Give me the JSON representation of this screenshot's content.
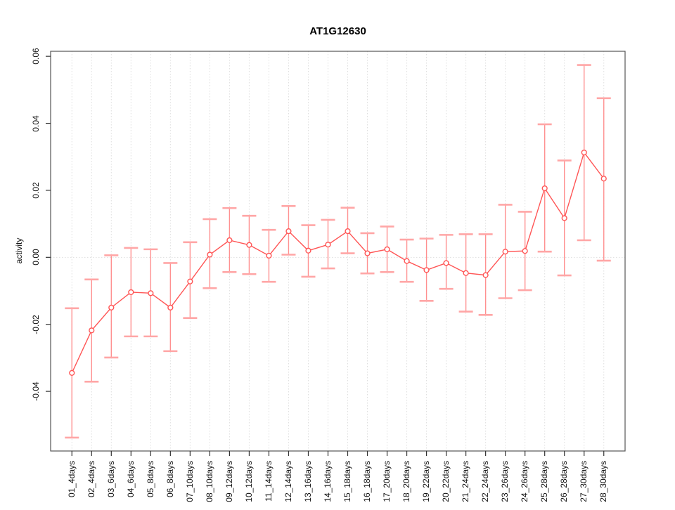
{
  "chart_data": {
    "type": "line",
    "title": "AT1G12630",
    "xlabel": "",
    "ylabel": "activity",
    "categories": [
      "01_4days",
      "02_4days",
      "03_6days",
      "04_6days",
      "05_8days",
      "06_8days",
      "07_10days",
      "08_10days",
      "09_12days",
      "10_12days",
      "11_14days",
      "12_14days",
      "13_16days",
      "14_16days",
      "15_18days",
      "16_18days",
      "17_20days",
      "18_20days",
      "19_22days",
      "20_22days",
      "21_24days",
      "22_24days",
      "23_26days",
      "24_26days",
      "25_28days",
      "26_28days",
      "27_30days",
      "28_30days"
    ],
    "series": [
      {
        "name": "activity",
        "values": [
          -0.0345,
          -0.0218,
          -0.015,
          -0.0104,
          -0.0107,
          -0.015,
          -0.0072,
          0.0008,
          0.0051,
          0.0037,
          0.0005,
          0.0078,
          0.002,
          0.0038,
          0.0078,
          0.0012,
          0.0024,
          -0.0011,
          -0.0038,
          -0.0017,
          -0.0047,
          -0.0053,
          0.0017,
          0.0019,
          0.0206,
          0.0117,
          0.0313,
          0.0235
        ],
        "upper": [
          -0.0152,
          -0.0066,
          0.0006,
          0.0028,
          0.0024,
          -0.0017,
          0.0045,
          0.0114,
          0.0147,
          0.0124,
          0.0082,
          0.0153,
          0.0096,
          0.0112,
          0.0148,
          0.0072,
          0.0092,
          0.0053,
          0.0056,
          0.0067,
          0.0069,
          0.0069,
          0.0157,
          0.0136,
          0.0397,
          0.0289,
          0.0574,
          0.0475
        ],
        "lower": [
          -0.0538,
          -0.0371,
          -0.0299,
          -0.0236,
          -0.0236,
          -0.028,
          -0.0181,
          -0.0092,
          -0.0044,
          -0.005,
          -0.0073,
          0.0008,
          -0.0058,
          -0.0033,
          0.0012,
          -0.0048,
          -0.0044,
          -0.0073,
          -0.013,
          -0.0094,
          -0.0162,
          -0.0172,
          -0.0122,
          -0.0098,
          0.0017,
          -0.0054,
          0.0051,
          -0.001
        ]
      }
    ],
    "ylim": [
      -0.0578,
      0.0615
    ],
    "yticks": [
      0.06,
      0.04,
      0.02,
      0,
      -0.02,
      -0.04
    ],
    "ytick_labels": [
      "0.06",
      "0.04",
      "0.02",
      "0.00",
      "-0.02",
      "-0.04"
    ],
    "grid": {
      "vertical": "dotted",
      "horizontal": "zero-line-only",
      "style": "dotted"
    },
    "legend": "none",
    "marker": "open-circle",
    "colors": {
      "series": "#ff5555",
      "errorbar": "#ff9090",
      "errorbar_cap": "#ffa6a6",
      "grid": "#dedede",
      "axis": "#555555",
      "tick": "#333333",
      "text": "#111111",
      "background": "#ffffff"
    }
  }
}
